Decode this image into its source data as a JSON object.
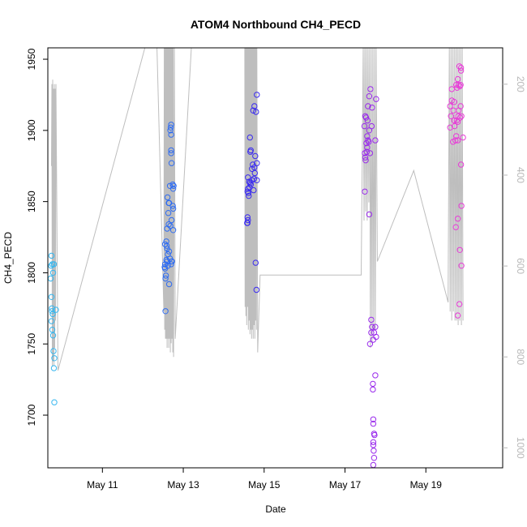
{
  "chart_data": {
    "type": "scatter",
    "title": "ATOM4 Northbound CH4_PECD",
    "xlabel": "Date",
    "ylabel": "CH4_PECD",
    "x_unit": "days (May)",
    "xlim": [
      9.65,
      20.9
    ],
    "ylim": [
      1663,
      1958
    ],
    "y2lim": [
      1044,
      120
    ],
    "x_ticks": [
      {
        "value": 11,
        "label": "May 11"
      },
      {
        "value": 13,
        "label": "May 13"
      },
      {
        "value": 15,
        "label": "May 15"
      },
      {
        "value": 17,
        "label": "May 17"
      },
      {
        "value": 19,
        "label": "May 19"
      }
    ],
    "y_ticks": [
      1700,
      1750,
      1800,
      1850,
      1900,
      1950
    ],
    "y2_ticks": [
      200,
      400,
      600,
      800,
      1000
    ],
    "grid": false,
    "point_colors": [
      "#35b6ef",
      "#2e6cf2",
      "#3a2bf0",
      "#9a2bec",
      "#e83cd8"
    ],
    "line_color": "#bebebe",
    "series": [
      {
        "color": "#35b6ef",
        "points": [
          [
            9.74,
            1812
          ],
          [
            9.73,
            1805
          ],
          [
            9.76,
            1806
          ],
          [
            9.8,
            1806
          ],
          [
            9.72,
            1796
          ],
          [
            9.78,
            1800
          ],
          [
            9.74,
            1783
          ],
          [
            9.75,
            1775
          ],
          [
            9.75,
            1773
          ],
          [
            9.77,
            1771
          ],
          [
            9.85,
            1774
          ],
          [
            9.74,
            1766
          ],
          [
            9.76,
            1760
          ],
          [
            9.78,
            1756
          ],
          [
            9.79,
            1745
          ],
          [
            9.81,
            1740
          ],
          [
            9.8,
            1733
          ],
          [
            9.81,
            1709
          ]
        ]
      },
      {
        "color": "#2e6cf2",
        "points": [
          [
            12.7,
            1904
          ],
          [
            12.69,
            1902
          ],
          [
            12.68,
            1900
          ],
          [
            12.7,
            1897
          ],
          [
            12.7,
            1886
          ],
          [
            12.7,
            1884
          ],
          [
            12.71,
            1877
          ],
          [
            12.67,
            1861
          ],
          [
            12.74,
            1862
          ],
          [
            12.76,
            1861
          ],
          [
            12.75,
            1859
          ],
          [
            12.61,
            1853
          ],
          [
            12.64,
            1849
          ],
          [
            12.65,
            1849
          ],
          [
            12.74,
            1847
          ],
          [
            12.75,
            1845
          ],
          [
            12.63,
            1842
          ],
          [
            12.71,
            1837
          ],
          [
            12.64,
            1834
          ],
          [
            12.68,
            1833
          ],
          [
            12.75,
            1830
          ],
          [
            12.6,
            1831
          ],
          [
            12.55,
            1820
          ],
          [
            12.58,
            1822
          ],
          [
            12.59,
            1819
          ],
          [
            12.6,
            1817
          ],
          [
            12.62,
            1813
          ],
          [
            12.65,
            1815
          ],
          [
            12.67,
            1810
          ],
          [
            12.72,
            1808
          ],
          [
            12.71,
            1808
          ],
          [
            12.7,
            1806
          ],
          [
            12.55,
            1806
          ],
          [
            12.54,
            1804
          ],
          [
            12.55,
            1803
          ],
          [
            12.62,
            1805
          ],
          [
            12.58,
            1809
          ],
          [
            12.6,
            1808
          ],
          [
            12.57,
            1798
          ],
          [
            12.56,
            1796
          ],
          [
            12.65,
            1792
          ],
          [
            12.56,
            1773
          ]
        ]
      },
      {
        "color": "#3a2bf0",
        "points": [
          [
            14.82,
            1925
          ],
          [
            14.76,
            1917
          ],
          [
            14.73,
            1914
          ],
          [
            14.8,
            1913
          ],
          [
            14.65,
            1895
          ],
          [
            14.67,
            1886
          ],
          [
            14.66,
            1885
          ],
          [
            14.78,
            1882
          ],
          [
            14.72,
            1876
          ],
          [
            14.82,
            1877
          ],
          [
            14.7,
            1873
          ],
          [
            14.76,
            1874
          ],
          [
            14.77,
            1870
          ],
          [
            14.6,
            1867
          ],
          [
            14.63,
            1864
          ],
          [
            14.65,
            1863
          ],
          [
            14.67,
            1862
          ],
          [
            14.7,
            1865
          ],
          [
            14.75,
            1866
          ],
          [
            14.82,
            1865
          ],
          [
            14.6,
            1859
          ],
          [
            14.59,
            1857
          ],
          [
            14.61,
            1856
          ],
          [
            14.64,
            1860
          ],
          [
            14.74,
            1858
          ],
          [
            14.62,
            1854
          ],
          [
            14.59,
            1839
          ],
          [
            14.6,
            1837
          ],
          [
            14.58,
            1835
          ],
          [
            14.59,
            1835
          ],
          [
            14.79,
            1807
          ],
          [
            14.81,
            1788
          ]
        ]
      },
      {
        "color": "#9a2bec",
        "points": [
          [
            17.63,
            1929
          ],
          [
            17.6,
            1924
          ],
          [
            17.77,
            1922
          ],
          [
            17.57,
            1917
          ],
          [
            17.67,
            1916
          ],
          [
            17.5,
            1910
          ],
          [
            17.52,
            1909
          ],
          [
            17.56,
            1907
          ],
          [
            17.48,
            1903
          ],
          [
            17.66,
            1903
          ],
          [
            17.6,
            1900
          ],
          [
            17.55,
            1896
          ],
          [
            17.57,
            1893
          ],
          [
            17.59,
            1892
          ],
          [
            17.53,
            1891
          ],
          [
            17.75,
            1893
          ],
          [
            17.55,
            1888
          ],
          [
            17.54,
            1885
          ],
          [
            17.49,
            1884
          ],
          [
            17.62,
            1884
          ],
          [
            17.5,
            1881
          ],
          [
            17.51,
            1879
          ],
          [
            17.49,
            1857
          ],
          [
            17.6,
            1841
          ],
          [
            17.65,
            1767
          ],
          [
            17.67,
            1762
          ],
          [
            17.75,
            1762
          ],
          [
            17.65,
            1758
          ],
          [
            17.72,
            1758
          ],
          [
            17.62,
            1750
          ],
          [
            17.7,
            1753
          ],
          [
            17.77,
            1755
          ],
          [
            17.75,
            1728
          ],
          [
            17.69,
            1722
          ],
          [
            17.69,
            1718
          ],
          [
            17.7,
            1697
          ],
          [
            17.7,
            1694
          ],
          [
            17.72,
            1687
          ],
          [
            17.73,
            1686
          ],
          [
            17.7,
            1681
          ],
          [
            17.7,
            1679
          ],
          [
            17.71,
            1675
          ],
          [
            17.72,
            1670
          ],
          [
            17.7,
            1665
          ]
        ]
      },
      {
        "color": "#e83cd8",
        "points": [
          [
            19.83,
            1945
          ],
          [
            19.87,
            1944
          ],
          [
            19.87,
            1942
          ],
          [
            19.79,
            1936
          ],
          [
            19.75,
            1932
          ],
          [
            19.81,
            1932
          ],
          [
            19.86,
            1932
          ],
          [
            19.77,
            1930
          ],
          [
            19.84,
            1931
          ],
          [
            19.64,
            1929
          ],
          [
            19.64,
            1921
          ],
          [
            19.7,
            1920
          ],
          [
            19.6,
            1917
          ],
          [
            19.86,
            1917
          ],
          [
            19.68,
            1914
          ],
          [
            19.81,
            1914
          ],
          [
            19.62,
            1910
          ],
          [
            19.8,
            1910
          ],
          [
            19.7,
            1907
          ],
          [
            19.76,
            1907
          ],
          [
            19.85,
            1909
          ],
          [
            19.88,
            1910
          ],
          [
            19.71,
            1903
          ],
          [
            19.6,
            1902
          ],
          [
            19.79,
            1906
          ],
          [
            19.75,
            1896
          ],
          [
            19.73,
            1893
          ],
          [
            19.92,
            1895
          ],
          [
            19.67,
            1892
          ],
          [
            19.79,
            1893
          ],
          [
            19.87,
            1876
          ],
          [
            19.88,
            1847
          ],
          [
            19.79,
            1838
          ],
          [
            19.74,
            1832
          ],
          [
            19.84,
            1816
          ],
          [
            19.88,
            1805
          ],
          [
            19.83,
            1778
          ],
          [
            19.79,
            1770
          ]
        ]
      }
    ],
    "line_x": [
      9.74,
      9.75,
      9.76,
      9.77,
      9.78,
      9.79,
      9.8,
      9.81,
      9.82,
      9.83,
      9.84,
      9.85,
      9.9,
      12.05,
      12.35,
      12.52,
      12.53,
      12.54,
      12.55,
      12.56,
      12.57,
      12.58,
      12.59,
      12.6,
      12.61,
      12.62,
      12.63,
      12.64,
      12.65,
      12.66,
      12.67,
      12.68,
      12.69,
      12.7,
      12.71,
      12.72,
      12.73,
      12.74,
      12.75,
      12.76,
      12.78,
      12.8,
      13.2,
      13.2,
      14.4,
      14.52,
      14.53,
      14.54,
      14.55,
      14.56,
      14.57,
      14.58,
      14.59,
      14.6,
      14.61,
      14.62,
      14.63,
      14.64,
      14.65,
      14.66,
      14.67,
      14.68,
      14.69,
      14.7,
      14.71,
      14.72,
      14.73,
      14.74,
      14.75,
      14.76,
      14.77,
      14.78,
      14.79,
      14.8,
      14.81,
      14.82,
      14.84,
      14.9,
      17.4,
      17.45,
      17.47,
      17.49,
      17.51,
      17.53,
      17.55,
      17.57,
      17.59,
      17.61,
      17.63,
      17.65,
      17.67,
      17.69,
      17.71,
      17.73,
      17.75,
      17.77,
      17.8,
      18.7,
      19.55,
      19.58,
      19.6,
      19.62,
      19.64,
      19.66,
      19.68,
      19.7,
      19.72,
      19.74,
      19.76,
      19.78,
      19.8,
      19.82,
      19.84,
      19.86,
      19.88,
      19.9,
      19.92
    ],
    "line_y2": [
      380,
      200,
      820,
      190,
      810,
      210,
      820,
      200,
      780,
      210,
      720,
      200,
      830,
      120,
      120,
      700,
      120,
      740,
      120,
      760,
      120,
      760,
      120,
      780,
      120,
      760,
      120,
      780,
      120,
      760,
      120,
      790,
      120,
      770,
      120,
      760,
      120,
      790,
      120,
      800,
      120,
      760,
      120,
      120,
      120,
      120,
      690,
      120,
      710,
      120,
      730,
      120,
      690,
      120,
      740,
      120,
      720,
      120,
      750,
      120,
      740,
      120,
      760,
      120,
      740,
      120,
      760,
      120,
      730,
      120,
      760,
      120,
      720,
      120,
      740,
      120,
      790,
      620,
      620,
      120,
      500,
      120,
      480,
      120,
      500,
      120,
      460,
      120,
      780,
      120,
      770,
      120,
      740,
      120,
      740,
      120,
      590,
      390,
      680,
      120,
      700,
      120,
      720,
      120,
      700,
      120,
      720,
      120,
      720,
      120,
      730,
      120,
      720,
      120,
      730,
      120,
      720,
      120,
      730
    ]
  }
}
